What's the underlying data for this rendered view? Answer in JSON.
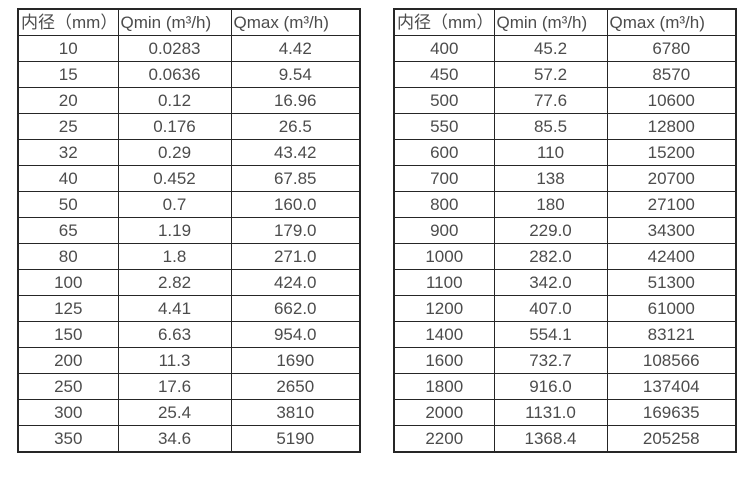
{
  "columns": {
    "diameter": "内径（mm）",
    "qmin": "Qmin (m³/h)",
    "qmax": "Qmax (m³/h)"
  },
  "left_table": {
    "rows": [
      [
        "10",
        "0.0283",
        "4.42"
      ],
      [
        "15",
        "0.0636",
        "9.54"
      ],
      [
        "20",
        "0.12",
        "16.96"
      ],
      [
        "25",
        "0.176",
        "26.5"
      ],
      [
        "32",
        "0.29",
        "43.42"
      ],
      [
        "40",
        "0.452",
        "67.85"
      ],
      [
        "50",
        "0.7",
        "160.0"
      ],
      [
        "65",
        "1.19",
        "179.0"
      ],
      [
        "80",
        "1.8",
        "271.0"
      ],
      [
        "100",
        "2.82",
        "424.0"
      ],
      [
        "125",
        "4.41",
        "662.0"
      ],
      [
        "150",
        "6.63",
        "954.0"
      ],
      [
        "200",
        "11.3",
        "1690"
      ],
      [
        "250",
        "17.6",
        "2650"
      ],
      [
        "300",
        "25.4",
        "3810"
      ],
      [
        "350",
        "34.6",
        "5190"
      ]
    ]
  },
  "right_table": {
    "rows": [
      [
        "400",
        "45.2",
        "6780"
      ],
      [
        "450",
        "57.2",
        "8570"
      ],
      [
        "500",
        "77.6",
        "10600"
      ],
      [
        "550",
        "85.5",
        "12800"
      ],
      [
        "600",
        "110",
        "15200"
      ],
      [
        "700",
        "138",
        "20700"
      ],
      [
        "800",
        "180",
        "27100"
      ],
      [
        "900",
        "229.0",
        "34300"
      ],
      [
        "1000",
        "282.0",
        "42400"
      ],
      [
        "1100",
        "342.0",
        "51300"
      ],
      [
        "1200",
        "407.0",
        "61000"
      ],
      [
        "1400",
        "554.1",
        "83121"
      ],
      [
        "1600",
        "732.7",
        "108566"
      ],
      [
        "1800",
        "916.0",
        "137404"
      ],
      [
        "2000",
        "1131.0",
        "169635"
      ],
      [
        "2200",
        "1368.4",
        "205258"
      ]
    ]
  },
  "colors": {
    "text": "#4c4c4c",
    "border": "#262626",
    "background": "#ffffff"
  }
}
